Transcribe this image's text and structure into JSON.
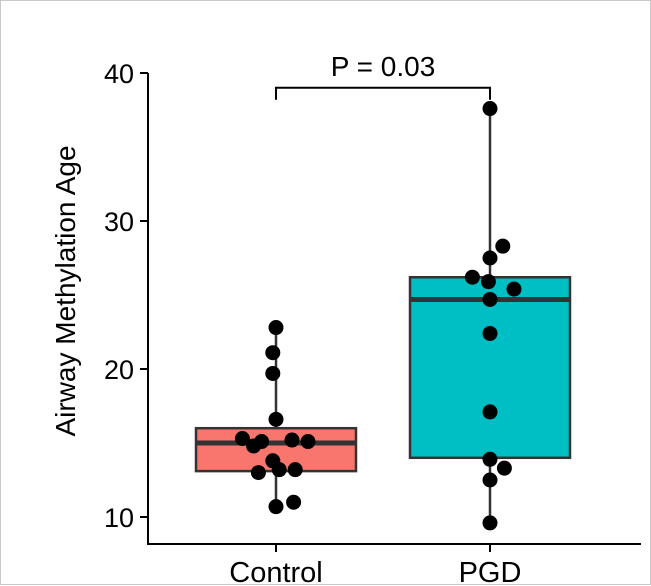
{
  "chart_data": {
    "type": "box",
    "ylabel": "Airway Methylation Age",
    "xlabel": "",
    "ylim": [
      8.2,
      41
    ],
    "y_ticks": [
      "10",
      "20",
      "30",
      "40"
    ],
    "y_tick_values": [
      10,
      20,
      30,
      40
    ],
    "categories": [
      "Control",
      "PGD"
    ],
    "colors": {
      "Control": "#f8766d",
      "PGD": "#00bfc4"
    },
    "boxes": [
      {
        "category": "Control",
        "whisker_low": 10.7,
        "q1": 13.1,
        "median": 15.0,
        "q3": 16.0,
        "whisker_high": 22.8
      },
      {
        "category": "PGD",
        "whisker_low": 9.6,
        "q1": 14.0,
        "median": 24.7,
        "q3": 26.2,
        "whisker_high": 37.6
      }
    ],
    "points": [
      {
        "category": "Control",
        "values": [
          22.8,
          21.1,
          19.7,
          16.6,
          15.3,
          15.1,
          15.2,
          15.1,
          14.8,
          13.8,
          13.0,
          13.2,
          13.2,
          11.0,
          10.7
        ],
        "offsets": [
          0,
          -0.02,
          -0.02,
          0,
          -0.21,
          -0.09,
          0.1,
          0.2,
          -0.14,
          -0.02,
          -0.11,
          0.12,
          0.02,
          0.11,
          0
        ]
      },
      {
        "category": "PGD",
        "values": [
          37.6,
          28.3,
          27.5,
          26.2,
          25.9,
          25.4,
          24.7,
          22.4,
          17.1,
          13.9,
          13.3,
          12.5,
          9.6
        ],
        "offsets": [
          0,
          0.08,
          0,
          -0.11,
          -0.01,
          0.15,
          0,
          0,
          0,
          0,
          0.09,
          0,
          0
        ]
      }
    ],
    "annotation": {
      "text": "P = 0.03",
      "between": [
        "Control",
        "PGD"
      ],
      "y_level": 39.0,
      "y_text_level": 41.5
    }
  }
}
